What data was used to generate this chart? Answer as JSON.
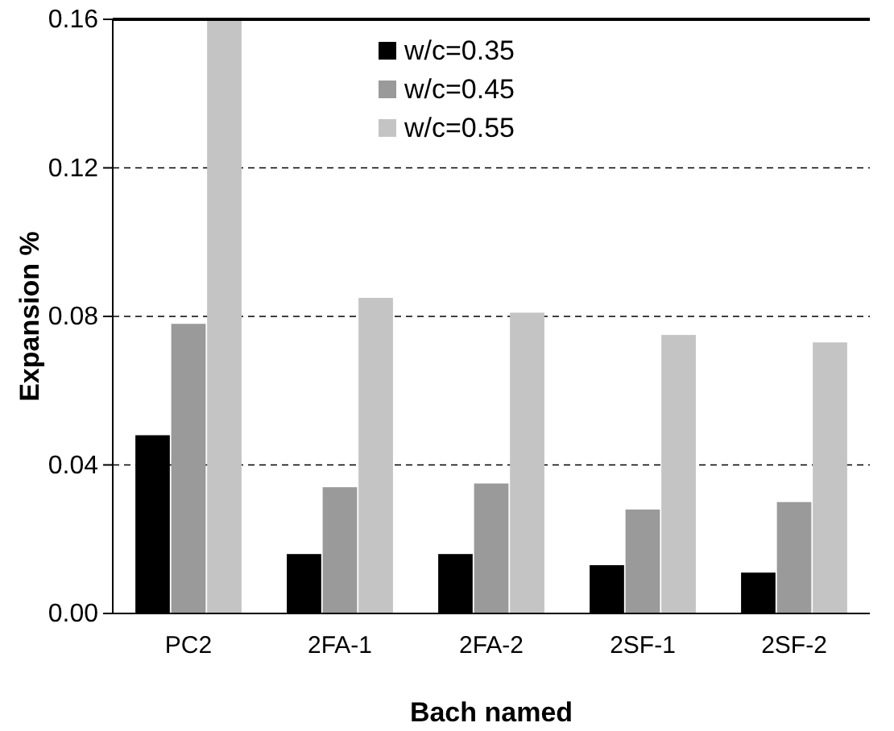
{
  "chart_data": {
    "type": "bar",
    "xlabel": "Bach named",
    "ylabel": "Expansion %",
    "categories": [
      "PC2",
      "2FA-1",
      "2FA-2",
      "2SF-1",
      "2SF-2"
    ],
    "series": [
      {
        "name": "w/c=0.35",
        "color": "#000000",
        "values": [
          0.048,
          0.016,
          0.016,
          0.013,
          0.011
        ]
      },
      {
        "name": "w/c=0.45",
        "color": "#9a9a9a",
        "values": [
          0.078,
          0.034,
          0.035,
          0.028,
          0.03
        ]
      },
      {
        "name": "w/c=0.55",
        "color": "#c4c4c4",
        "values": [
          0.16,
          0.085,
          0.081,
          0.075,
          0.073
        ]
      }
    ],
    "ylim": [
      0,
      0.16
    ],
    "yticks": [
      {
        "value": 0,
        "label": "0.00"
      },
      {
        "value": 0.04,
        "label": "0.04"
      },
      {
        "value": 0.08,
        "label": "0.08"
      },
      {
        "value": 0.12,
        "label": "0.12"
      },
      {
        "value": 0.16,
        "label": "0.16"
      }
    ],
    "grid": "y",
    "legend": "top"
  }
}
